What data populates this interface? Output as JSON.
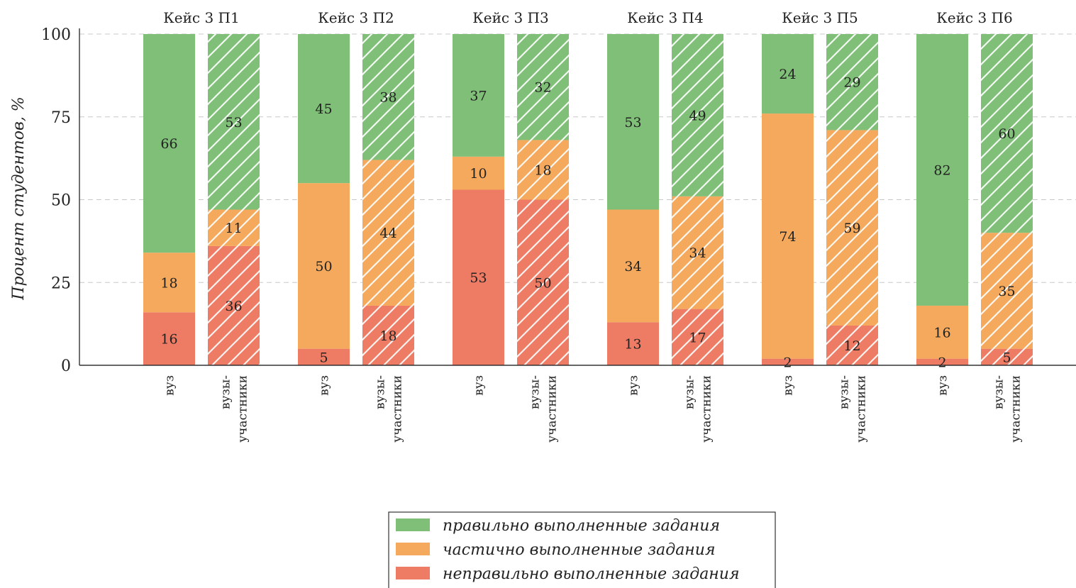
{
  "chart_data": {
    "type": "bar",
    "stacked": true,
    "ylabel": "Процент студентов, %",
    "ylim": [
      0,
      100
    ],
    "yticks": [
      "0",
      "25",
      "50",
      "75",
      "100"
    ],
    "grid": "horizontal dashed",
    "groups": [
      {
        "title": "Кейс 3 П1",
        "bars": [
          {
            "label": "вуз",
            "values": [
              16,
              18,
              66
            ]
          },
          {
            "label": "вузы-участники",
            "values": [
              36,
              11,
              53
            ]
          }
        ]
      },
      {
        "title": "Кейс 3 П2",
        "bars": [
          {
            "label": "вуз",
            "values": [
              5,
              50,
              45
            ]
          },
          {
            "label": "вузы-участники",
            "values": [
              18,
              44,
              38
            ]
          }
        ]
      },
      {
        "title": "Кейс 3 П3",
        "bars": [
          {
            "label": "вуз",
            "values": [
              53,
              10,
              37
            ]
          },
          {
            "label": "вузы-участники",
            "values": [
              50,
              18,
              32
            ]
          }
        ]
      },
      {
        "title": "Кейс 3 П4",
        "bars": [
          {
            "label": "вуз",
            "values": [
              13,
              34,
              53
            ]
          },
          {
            "label": "вузы-участники",
            "values": [
              17,
              34,
              49
            ]
          }
        ]
      },
      {
        "title": "Кейс 3 П5",
        "bars": [
          {
            "label": "вуз",
            "values": [
              2,
              74,
              24
            ]
          },
          {
            "label": "вузы-участники",
            "values": [
              12,
              59,
              29
            ]
          }
        ]
      },
      {
        "title": "Кейс 3 П6",
        "bars": [
          {
            "label": "вуз",
            "values": [
              2,
              16,
              82
            ]
          },
          {
            "label": "вузы-участники",
            "values": [
              5,
              35,
              60
            ]
          }
        ]
      }
    ],
    "series": [
      {
        "name": "неправильно выполненные задания",
        "color": "#ee7b64"
      },
      {
        "name": "частично выполненные задания",
        "color": "#f5a95c"
      },
      {
        "name": "правильно выполненные задания",
        "color": "#7fbf77"
      }
    ],
    "hatched_bar": "вузы-участники",
    "legend_placement": "bottom-center",
    "legend_order": [
      "правильно выполненные задания",
      "частично выполненные задания",
      "неправильно выполненные задания"
    ]
  }
}
